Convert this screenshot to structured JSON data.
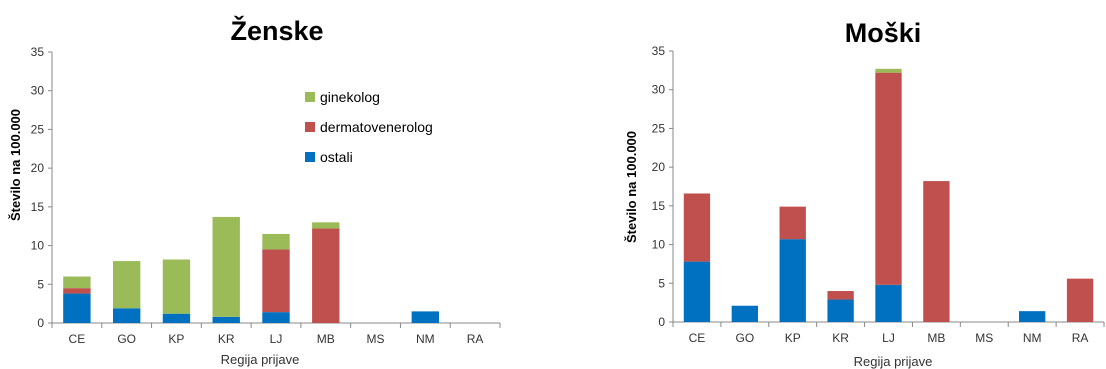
{
  "colors": {
    "ginekolog": "#9BBB59",
    "dermatovenerolog": "#C0504D",
    "ostali": "#0070C0"
  },
  "chart_data": [
    {
      "type": "bar",
      "stacked": true,
      "title": "Ženske",
      "xlabel": "Regija prijave",
      "ylabel": "Število na 100.000",
      "ylim": [
        0,
        35
      ],
      "yticks": [
        "0",
        "5",
        "10",
        "15",
        "20",
        "25",
        "30",
        "35"
      ],
      "categories": [
        "CE",
        "GO",
        "KP",
        "KR",
        "LJ",
        "MB",
        "MS",
        "NM",
        "RA"
      ],
      "legend": [
        "ginekolog",
        "dermatovenerolog",
        "ostali"
      ],
      "series": [
        {
          "name": "ostali",
          "values": [
            3.8,
            1.9,
            1.2,
            0.8,
            1.4,
            0,
            0,
            1.5,
            0
          ]
        },
        {
          "name": "dermatovenerolog",
          "values": [
            0.7,
            0,
            0,
            0,
            8.1,
            12.2,
            0,
            0,
            0
          ]
        },
        {
          "name": "ginekolog",
          "values": [
            1.5,
            6.1,
            7.0,
            12.9,
            2.0,
            0.8,
            0,
            0,
            0
          ]
        }
      ]
    },
    {
      "type": "bar",
      "stacked": true,
      "title": "Moški",
      "xlabel": "Regija prijave",
      "ylabel": "Število na 100.000",
      "ylim": [
        0,
        35
      ],
      "yticks": [
        "0",
        "5",
        "10",
        "15",
        "20",
        "25",
        "30",
        "35"
      ],
      "categories": [
        "CE",
        "GO",
        "KP",
        "KR",
        "LJ",
        "MB",
        "MS",
        "NM",
        "RA"
      ],
      "series": [
        {
          "name": "ostali",
          "values": [
            7.8,
            2.1,
            10.7,
            2.9,
            4.8,
            0,
            0,
            1.4,
            0
          ]
        },
        {
          "name": "dermatovenerolog",
          "values": [
            8.8,
            0,
            4.2,
            1.1,
            27.4,
            18.2,
            0,
            0,
            5.6
          ]
        },
        {
          "name": "ginekolog",
          "values": [
            0,
            0,
            0,
            0,
            0.5,
            0,
            0,
            0,
            0
          ]
        }
      ]
    }
  ]
}
